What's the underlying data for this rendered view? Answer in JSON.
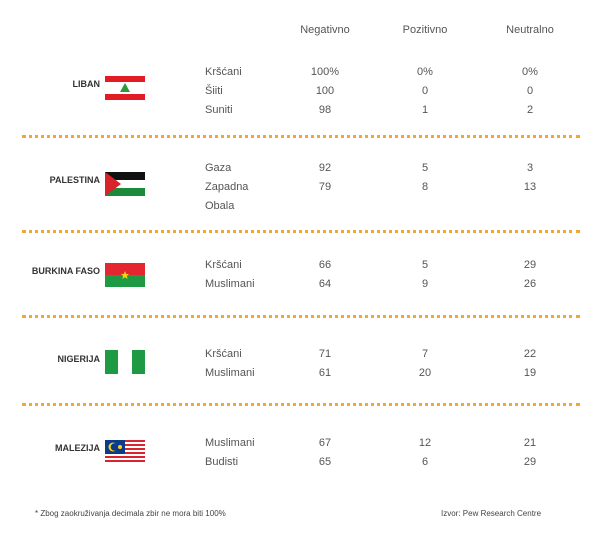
{
  "header": {
    "columns": [
      "Negativno",
      "Pozitivno",
      "Neutralno"
    ]
  },
  "groups": [
    {
      "country": "LIBAN",
      "rows": [
        [
          "Kršćani",
          "100%",
          "0%",
          "0%"
        ],
        [
          "Šiiti",
          "100",
          "0",
          "0"
        ],
        [
          "Suniti",
          "98",
          "1",
          "2"
        ]
      ]
    },
    {
      "country": "PALESTINA",
      "rows": [
        [
          "Gaza",
          "92",
          "5",
          "3"
        ],
        [
          "Zapadna Obala",
          "79",
          "8",
          "13"
        ]
      ]
    },
    {
      "country": "BURKINA FASO",
      "rows": [
        [
          "Kršćani",
          "66",
          "5",
          "29"
        ],
        [
          "Muslimani",
          "64",
          "9",
          "26"
        ]
      ]
    },
    {
      "country": "NIGERIJA",
      "rows": [
        [
          "Kršćani",
          "71",
          "7",
          "22"
        ],
        [
          "Muslimani",
          "61",
          "20",
          "19"
        ]
      ]
    },
    {
      "country": "MALEZIJA",
      "rows": [
        [
          "Muslimani",
          "67",
          "12",
          "21"
        ],
        [
          "Budisti",
          "65",
          "6",
          "29"
        ]
      ]
    }
  ],
  "footer": {
    "note": "* Zbog zaokruživanja decimala zbir ne mora biti 100%",
    "source": "Izvor: Pew Research Centre"
  }
}
